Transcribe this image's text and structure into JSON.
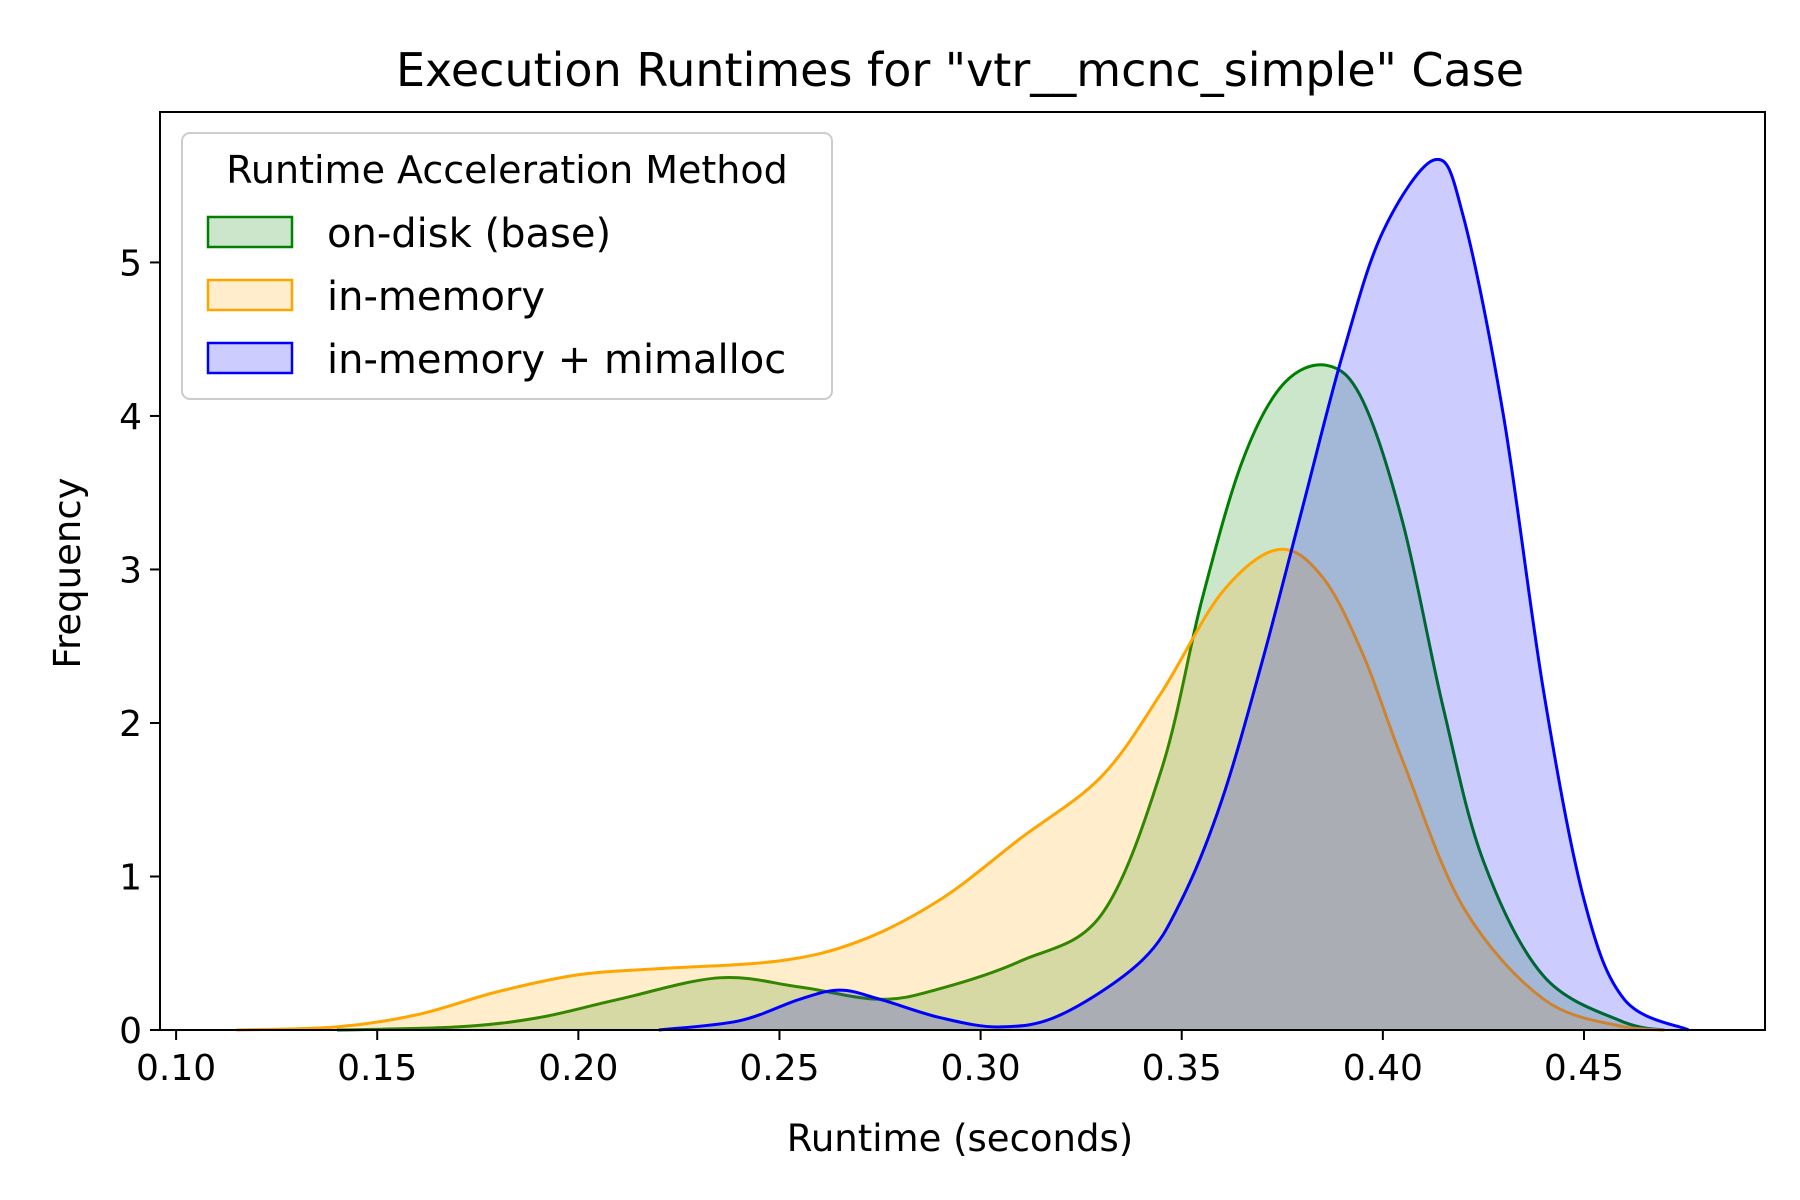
{
  "chart_data": {
    "type": "area",
    "title": "Execution Runtimes for \"vtr__mcnc_simple\" Case",
    "xlabel": "Runtime (seconds)",
    "ylabel": "Frequency",
    "xlim": [
      0.096,
      0.495
    ],
    "ylim": [
      0,
      5.98
    ],
    "x_ticks": [
      0.1,
      0.15,
      0.2,
      0.25,
      0.3,
      0.35,
      0.4,
      0.45
    ],
    "x_tick_labels": [
      "0.10",
      "0.15",
      "0.20",
      "0.25",
      "0.30",
      "0.35",
      "0.40",
      "0.45"
    ],
    "y_ticks": [
      0,
      1,
      2,
      3,
      4,
      5
    ],
    "y_tick_labels": [
      "0",
      "1",
      "2",
      "3",
      "4",
      "5"
    ],
    "grid": false,
    "legend": {
      "title": "Runtime Acceleration Method",
      "placement": "top-left"
    },
    "series": [
      {
        "name": "on-disk (base)",
        "color": "#008000",
        "fill_opacity": 0.2,
        "x": [
          0.14,
          0.17,
          0.19,
          0.21,
          0.235,
          0.255,
          0.275,
          0.29,
          0.31,
          0.33,
          0.345,
          0.355,
          0.365,
          0.375,
          0.386,
          0.395,
          0.405,
          0.415,
          0.425,
          0.44,
          0.46,
          0.47
        ],
        "y": [
          0,
          0.02,
          0.08,
          0.2,
          0.34,
          0.28,
          0.2,
          0.27,
          0.45,
          0.75,
          1.7,
          2.8,
          3.7,
          4.2,
          4.33,
          4.1,
          3.3,
          2.1,
          1.1,
          0.35,
          0.05,
          0
        ]
      },
      {
        "name": "in-memory",
        "color": "#FFA500",
        "fill_opacity": 0.2,
        "x": [
          0.115,
          0.14,
          0.16,
          0.18,
          0.2,
          0.22,
          0.25,
          0.27,
          0.29,
          0.31,
          0.33,
          0.345,
          0.36,
          0.374,
          0.385,
          0.395,
          0.405,
          0.42,
          0.44,
          0.46,
          0.47
        ],
        "y": [
          0,
          0.02,
          0.1,
          0.25,
          0.36,
          0.4,
          0.45,
          0.58,
          0.85,
          1.25,
          1.65,
          2.2,
          2.85,
          3.13,
          2.95,
          2.45,
          1.75,
          0.8,
          0.2,
          0.02,
          0
        ]
      },
      {
        "name": "in-memory + mimalloc",
        "color": "#0000FF",
        "fill_opacity": 0.2,
        "x": [
          0.22,
          0.24,
          0.255,
          0.265,
          0.275,
          0.29,
          0.305,
          0.32,
          0.34,
          0.35,
          0.36,
          0.37,
          0.38,
          0.39,
          0.4,
          0.413,
          0.42,
          0.43,
          0.44,
          0.45,
          0.46,
          0.476
        ],
        "y": [
          0,
          0.06,
          0.2,
          0.26,
          0.2,
          0.08,
          0.02,
          0.1,
          0.45,
          0.85,
          1.5,
          2.4,
          3.4,
          4.4,
          5.2,
          5.67,
          5.3,
          4.0,
          2.2,
          0.85,
          0.2,
          0
        ]
      }
    ]
  }
}
